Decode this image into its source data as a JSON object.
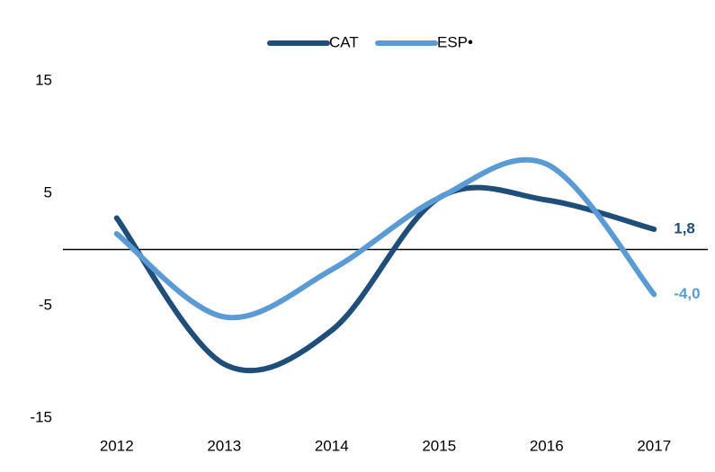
{
  "chart_data": {
    "type": "line",
    "categories": [
      "2012",
      "2013",
      "2014",
      "2015",
      "2016",
      "2017"
    ],
    "series": [
      {
        "name": "CAT",
        "color": "#1f4e79",
        "values": [
          2.8,
          -10.2,
          -7.2,
          4.6,
          4.4,
          1.8
        ],
        "value_labels": [
          null,
          null,
          null,
          null,
          null,
          "1,8"
        ]
      },
      {
        "name": "ESP•",
        "color": "#5b9bd5",
        "values": [
          1.4,
          -6.0,
          -1.8,
          4.6,
          7.6,
          -4.0
        ],
        "value_labels": [
          null,
          null,
          null,
          null,
          null,
          "-4,0"
        ]
      }
    ],
    "ylim": [
      -15,
      15
    ],
    "yticks": [
      -15,
      -5,
      5,
      15
    ],
    "legend": "top"
  }
}
